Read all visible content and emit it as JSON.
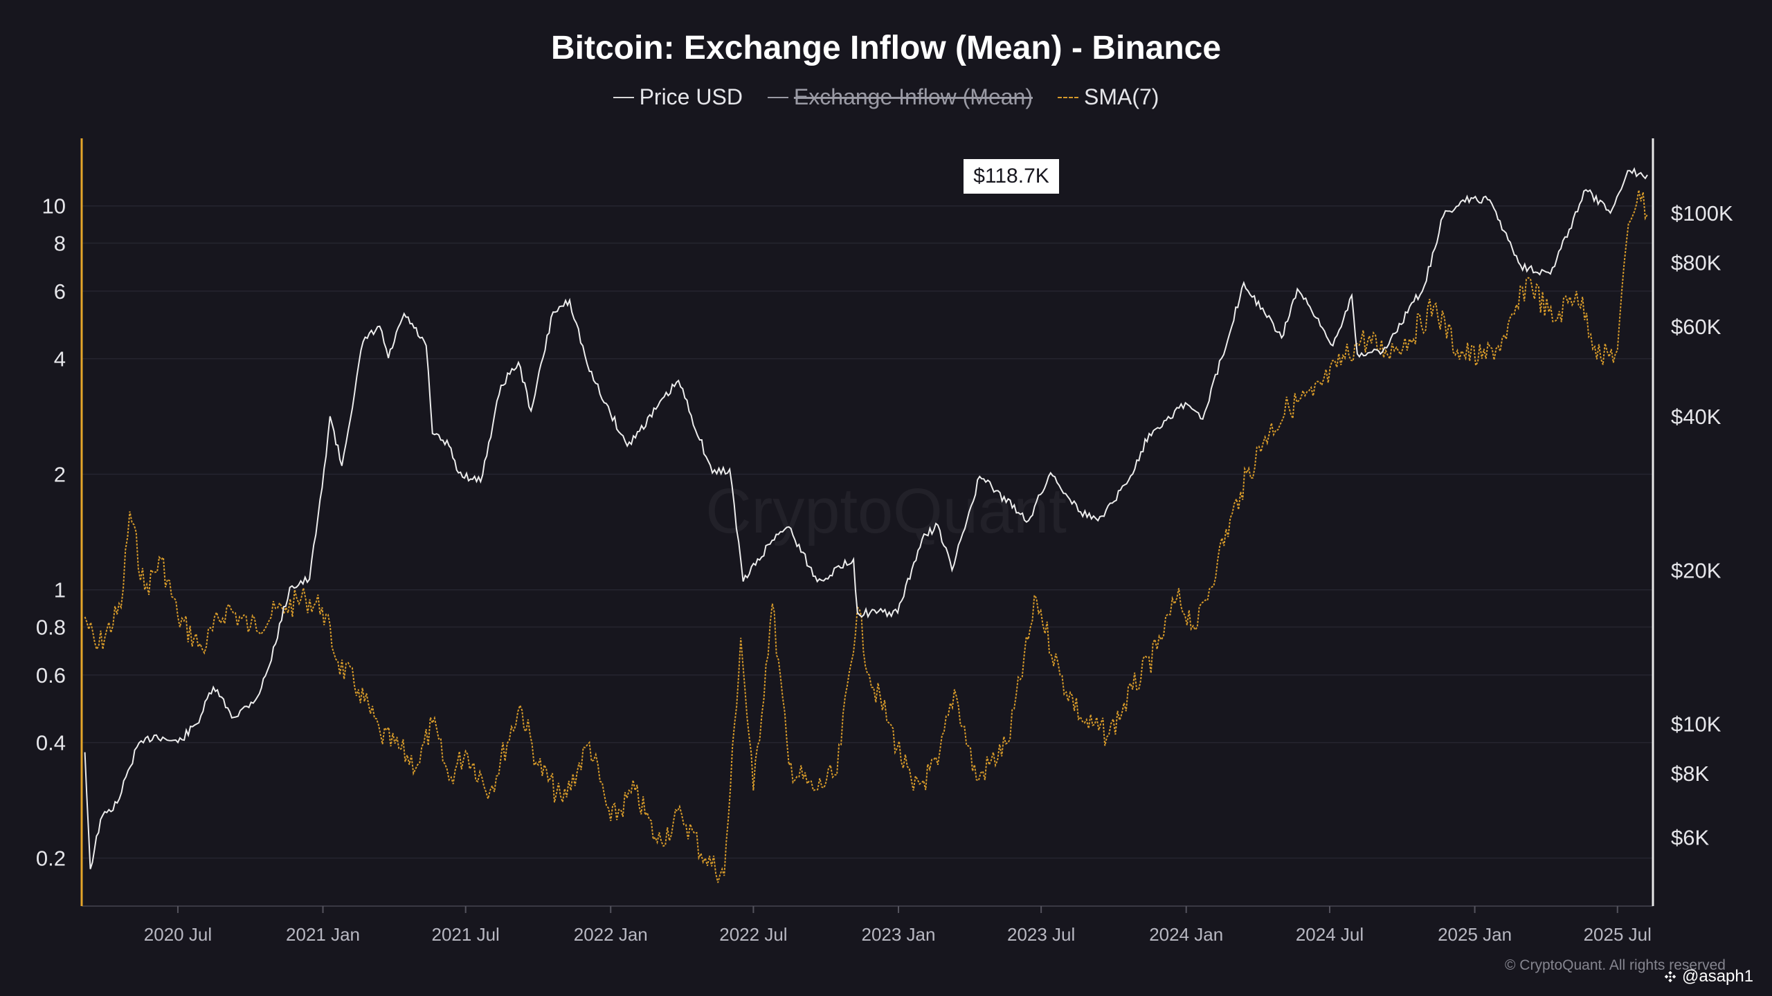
{
  "title": "Bitcoin: Exchange Inflow (Mean) - Binance",
  "legend": [
    {
      "label": "Price USD",
      "style": "solid",
      "color": "#d8d8d8",
      "hidden": false
    },
    {
      "label": "Exchange Inflow (Mean)",
      "style": "solid",
      "color": "#9a9aa4",
      "hidden": true
    },
    {
      "label": "SMA(7)",
      "style": "dashed",
      "color": "#d69a2a",
      "hidden": false
    }
  ],
  "watermark": "CryptoQuant",
  "copyright": "© CryptoQuant. All rights reserved",
  "author": "@asaph1",
  "price_badge": "$118.7K",
  "colors": {
    "background": "#17161e",
    "price": "#ededed",
    "sma": "#d69a2a",
    "left_axis": "#e5a52a",
    "right_axis": "#e9e9e9",
    "grid": "#262530"
  },
  "chart_data": {
    "type": "line",
    "x_axis": {
      "type": "date",
      "range": [
        "2020-03-01",
        "2025-08-15"
      ],
      "ticks": [
        {
          "date": "2020-07-01",
          "label": "2020 Jul"
        },
        {
          "date": "2021-01-01",
          "label": "2021 Jan"
        },
        {
          "date": "2021-07-01",
          "label": "2021 Jul"
        },
        {
          "date": "2022-01-01",
          "label": "2022 Jan"
        },
        {
          "date": "2022-07-01",
          "label": "2022 Jul"
        },
        {
          "date": "2023-01-01",
          "label": "2023 Jan"
        },
        {
          "date": "2023-07-01",
          "label": "2023 Jul"
        },
        {
          "date": "2024-01-01",
          "label": "2024 Jan"
        },
        {
          "date": "2024-07-01",
          "label": "2024 Jul"
        },
        {
          "date": "2025-01-01",
          "label": "2025 Jan"
        },
        {
          "date": "2025-07-01",
          "label": "2025 Jul"
        }
      ]
    },
    "y_left": {
      "scale": "log",
      "range": [
        0.15,
        15
      ],
      "ticks": [
        {
          "value": 0.2,
          "label": "0.2"
        },
        {
          "value": 0.4,
          "label": "0.4"
        },
        {
          "value": 0.6,
          "label": "0.6"
        },
        {
          "value": 0.8,
          "label": "0.8"
        },
        {
          "value": 1,
          "label": "1"
        },
        {
          "value": 2,
          "label": "2"
        },
        {
          "value": 4,
          "label": "4"
        },
        {
          "value": 6,
          "label": "6"
        },
        {
          "value": 8,
          "label": "8"
        },
        {
          "value": 10,
          "label": "10"
        }
      ]
    },
    "y_right": {
      "scale": "log",
      "range": [
        4400,
        140000
      ],
      "ticks": [
        {
          "value": 6000,
          "label": "$6K"
        },
        {
          "value": 8000,
          "label": "$8K"
        },
        {
          "value": 10000,
          "label": "$10K"
        },
        {
          "value": 20000,
          "label": "$20K"
        },
        {
          "value": 40000,
          "label": "$40K"
        },
        {
          "value": 60000,
          "label": "$60K"
        },
        {
          "value": 80000,
          "label": "$80K"
        },
        {
          "value": 100000,
          "label": "$100K"
        }
      ]
    },
    "grid": true,
    "series": [
      {
        "name": "Price USD",
        "axis": "right",
        "style": "solid",
        "points": [
          [
            "2020-03-05",
            8800
          ],
          [
            "2020-03-12",
            5200
          ],
          [
            "2020-03-25",
            6500
          ],
          [
            "2020-04-15",
            7000
          ],
          [
            "2020-05-10",
            9000
          ],
          [
            "2020-06-01",
            9500
          ],
          [
            "2020-07-01",
            9200
          ],
          [
            "2020-07-25",
            10000
          ],
          [
            "2020-08-15",
            11800
          ],
          [
            "2020-09-10",
            10300
          ],
          [
            "2020-10-10",
            11300
          ],
          [
            "2020-10-25",
            13000
          ],
          [
            "2020-11-20",
            18500
          ],
          [
            "2020-12-15",
            19200
          ],
          [
            "2020-12-31",
            29000
          ],
          [
            "2021-01-10",
            40000
          ],
          [
            "2021-01-25",
            32000
          ],
          [
            "2021-02-21",
            56000
          ],
          [
            "2021-03-14",
            60000
          ],
          [
            "2021-03-25",
            52000
          ],
          [
            "2021-04-14",
            63500
          ],
          [
            "2021-05-12",
            55000
          ],
          [
            "2021-05-20",
            37000
          ],
          [
            "2021-06-10",
            35000
          ],
          [
            "2021-06-22",
            31000
          ],
          [
            "2021-07-20",
            29800
          ],
          [
            "2021-08-15",
            46000
          ],
          [
            "2021-09-06",
            51000
          ],
          [
            "2021-09-22",
            41000
          ],
          [
            "2021-10-20",
            64000
          ],
          [
            "2021-11-10",
            67500
          ],
          [
            "2021-12-05",
            49000
          ],
          [
            "2022-01-22",
            35000
          ],
          [
            "2022-03-28",
            47000
          ],
          [
            "2022-05-10",
            31000
          ],
          [
            "2022-06-01",
            31500
          ],
          [
            "2022-06-18",
            19000
          ],
          [
            "2022-07-30",
            23500
          ],
          [
            "2022-08-15",
            24300
          ],
          [
            "2022-09-20",
            19000
          ],
          [
            "2022-11-05",
            21000
          ],
          [
            "2022-11-10",
            16500
          ],
          [
            "2022-12-31",
            16500
          ],
          [
            "2023-01-31",
            23000
          ],
          [
            "2023-02-20",
            24500
          ],
          [
            "2023-03-10",
            20000
          ],
          [
            "2023-04-14",
            30500
          ],
          [
            "2023-06-15",
            25000
          ],
          [
            "2023-07-13",
            31000
          ],
          [
            "2023-08-20",
            26000
          ],
          [
            "2023-09-11",
            25000
          ],
          [
            "2023-10-20",
            30000
          ],
          [
            "2023-11-15",
            37000
          ],
          [
            "2023-12-31",
            42500
          ],
          [
            "2024-01-22",
            39500
          ],
          [
            "2024-02-15",
            52000
          ],
          [
            "2024-03-14",
            73000
          ],
          [
            "2024-05-01",
            57000
          ],
          [
            "2024-05-21",
            71000
          ],
          [
            "2024-07-05",
            55000
          ],
          [
            "2024-07-29",
            69000
          ],
          [
            "2024-08-05",
            53000
          ],
          [
            "2024-09-06",
            53500
          ],
          [
            "2024-10-29",
            72000
          ],
          [
            "2024-11-22",
            98500
          ],
          [
            "2024-12-17",
            106000
          ],
          [
            "2025-01-20",
            106000
          ],
          [
            "2025-02-28",
            79000
          ],
          [
            "2025-04-07",
            76000
          ],
          [
            "2025-05-22",
            111000
          ],
          [
            "2025-06-22",
            100000
          ],
          [
            "2025-07-14",
            121000
          ],
          [
            "2025-08-08",
            118700
          ]
        ]
      },
      {
        "name": "SMA(7)",
        "axis": "left",
        "style": "dashed",
        "points": [
          [
            "2020-03-05",
            0.85
          ],
          [
            "2020-03-20",
            0.7
          ],
          [
            "2020-04-20",
            0.9
          ],
          [
            "2020-05-01",
            1.6
          ],
          [
            "2020-05-20",
            1.0
          ],
          [
            "2020-06-10",
            1.2
          ],
          [
            "2020-07-01",
            0.85
          ],
          [
            "2020-08-01",
            0.7
          ],
          [
            "2020-09-01",
            0.9
          ],
          [
            "2020-10-01",
            0.8
          ],
          [
            "2020-11-15",
            0.9
          ],
          [
            "2020-12-10",
            0.95
          ],
          [
            "2020-12-31",
            0.9
          ],
          [
            "2021-01-20",
            0.65
          ],
          [
            "2021-02-15",
            0.55
          ],
          [
            "2021-03-15",
            0.42
          ],
          [
            "2021-05-01",
            0.35
          ],
          [
            "2021-05-20",
            0.45
          ],
          [
            "2021-06-10",
            0.32
          ],
          [
            "2021-07-01",
            0.38
          ],
          [
            "2021-08-01",
            0.3
          ],
          [
            "2021-09-08",
            0.5
          ],
          [
            "2021-10-01",
            0.35
          ],
          [
            "2021-11-01",
            0.28
          ],
          [
            "2021-12-05",
            0.4
          ],
          [
            "2022-01-01",
            0.25
          ],
          [
            "2022-02-01",
            0.3
          ],
          [
            "2022-03-01",
            0.22
          ],
          [
            "2022-04-01",
            0.26
          ],
          [
            "2022-05-01",
            0.2
          ],
          [
            "2022-05-25",
            0.18
          ],
          [
            "2022-06-15",
            0.75
          ],
          [
            "2022-07-01",
            0.3
          ],
          [
            "2022-07-25",
            0.92
          ],
          [
            "2022-08-15",
            0.35
          ],
          [
            "2022-09-15",
            0.3
          ],
          [
            "2022-10-15",
            0.33
          ],
          [
            "2022-11-10",
            0.9
          ],
          [
            "2022-11-25",
            0.6
          ],
          [
            "2022-12-20",
            0.45
          ],
          [
            "2023-01-20",
            0.3
          ],
          [
            "2023-02-20",
            0.35
          ],
          [
            "2023-03-13",
            0.55
          ],
          [
            "2023-04-10",
            0.32
          ],
          [
            "2023-05-20",
            0.4
          ],
          [
            "2023-06-25",
            0.95
          ],
          [
            "2023-07-25",
            0.6
          ],
          [
            "2023-08-25",
            0.45
          ],
          [
            "2023-09-25",
            0.42
          ],
          [
            "2023-10-25",
            0.55
          ],
          [
            "2023-11-25",
            0.7
          ],
          [
            "2023-12-20",
            0.95
          ],
          [
            "2024-01-15",
            0.8
          ],
          [
            "2024-02-10",
            1.2
          ],
          [
            "2024-03-10",
            1.8
          ],
          [
            "2024-04-10",
            2.5
          ],
          [
            "2024-05-10",
            3.0
          ],
          [
            "2024-06-10",
            3.2
          ],
          [
            "2024-07-10",
            3.8
          ],
          [
            "2024-08-10",
            4.5
          ],
          [
            "2024-09-10",
            4.2
          ],
          [
            "2024-10-10",
            4.5
          ],
          [
            "2024-11-10",
            5.5
          ],
          [
            "2024-12-10",
            4.2
          ],
          [
            "2025-01-10",
            4.0
          ],
          [
            "2025-02-10",
            4.5
          ],
          [
            "2025-03-10",
            6.5
          ],
          [
            "2025-04-10",
            5.0
          ],
          [
            "2025-05-10",
            6.0
          ],
          [
            "2025-06-10",
            4.0
          ],
          [
            "2025-07-01",
            4.2
          ],
          [
            "2025-07-15",
            9.0
          ],
          [
            "2025-07-28",
            11.0
          ],
          [
            "2025-08-08",
            9.5
          ]
        ]
      }
    ]
  }
}
